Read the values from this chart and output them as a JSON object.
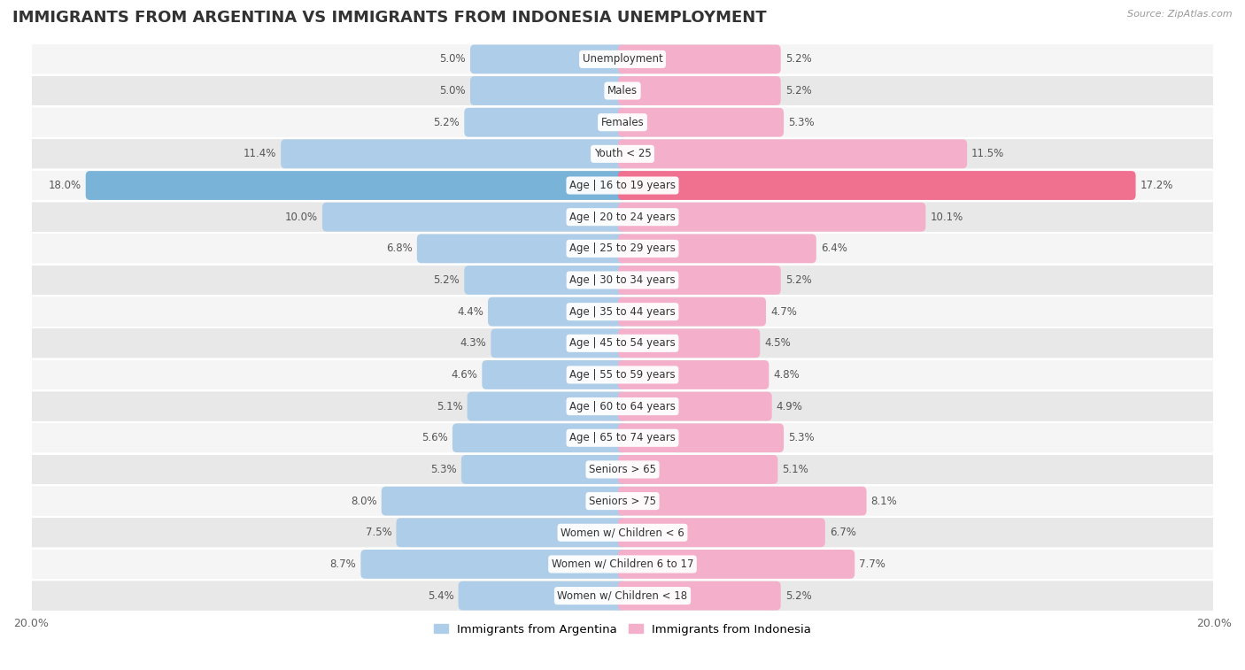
{
  "title": "IMMIGRANTS FROM ARGENTINA VS IMMIGRANTS FROM INDONESIA UNEMPLOYMENT",
  "source": "Source: ZipAtlas.com",
  "categories": [
    "Unemployment",
    "Males",
    "Females",
    "Youth < 25",
    "Age | 16 to 19 years",
    "Age | 20 to 24 years",
    "Age | 25 to 29 years",
    "Age | 30 to 34 years",
    "Age | 35 to 44 years",
    "Age | 45 to 54 years",
    "Age | 55 to 59 years",
    "Age | 60 to 64 years",
    "Age | 65 to 74 years",
    "Seniors > 65",
    "Seniors > 75",
    "Women w/ Children < 6",
    "Women w/ Children 6 to 17",
    "Women w/ Children < 18"
  ],
  "argentina_values": [
    5.0,
    5.0,
    5.2,
    11.4,
    18.0,
    10.0,
    6.8,
    5.2,
    4.4,
    4.3,
    4.6,
    5.1,
    5.6,
    5.3,
    8.0,
    7.5,
    8.7,
    5.4
  ],
  "indonesia_values": [
    5.2,
    5.2,
    5.3,
    11.5,
    17.2,
    10.1,
    6.4,
    5.2,
    4.7,
    4.5,
    4.8,
    4.9,
    5.3,
    5.1,
    8.1,
    6.7,
    7.7,
    5.2
  ],
  "argentina_color": "#aecde8",
  "indonesia_color": "#f4afca",
  "argentina_highlight_color": "#7ab3d8",
  "indonesia_highlight_color": "#f07090",
  "label_argentina": "Immigrants from Argentina",
  "label_indonesia": "Immigrants from Indonesia",
  "max_value": 20.0,
  "bar_height": 0.62,
  "row_color_light": "#f5f5f5",
  "row_color_dark": "#e8e8e8",
  "title_fontsize": 13,
  "label_fontsize": 8.5,
  "value_fontsize": 8.5
}
